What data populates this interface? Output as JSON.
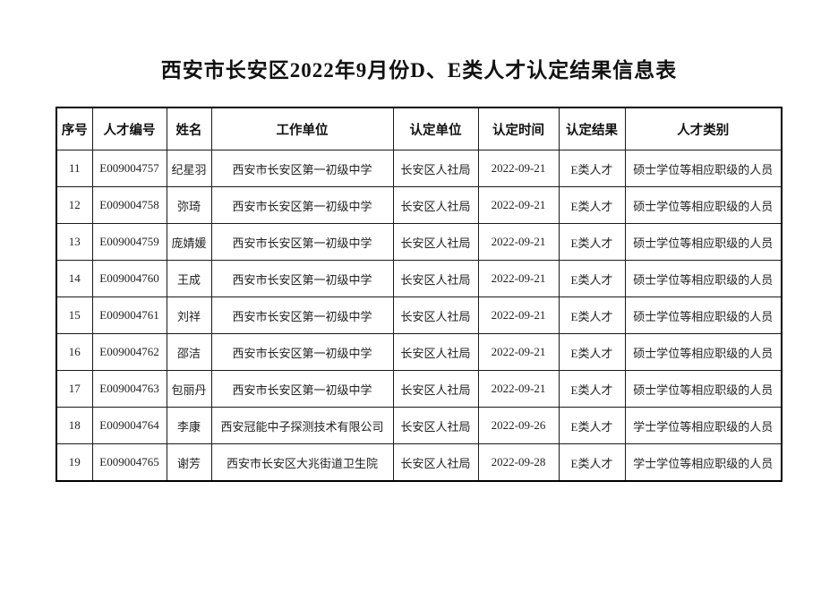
{
  "title": "西安市长安区2022年9月份D、E类人才认定结果信息表",
  "table": {
    "columns": [
      "序号",
      "人才编号",
      "姓名",
      "工作单位",
      "认定单位",
      "认定时间",
      "认定结果",
      "人才类别"
    ],
    "rows": [
      [
        "11",
        "E009004757",
        "纪星羽",
        "西安市长安区第一初级中学",
        "长安区人社局",
        "2022-09-21",
        "E类人才",
        "硕士学位等相应职级的人员"
      ],
      [
        "12",
        "E009004758",
        "弥琦",
        "西安市长安区第一初级中学",
        "长安区人社局",
        "2022-09-21",
        "E类人才",
        "硕士学位等相应职级的人员"
      ],
      [
        "13",
        "E009004759",
        "庞婧媛",
        "西安市长安区第一初级中学",
        "长安区人社局",
        "2022-09-21",
        "E类人才",
        "硕士学位等相应职级的人员"
      ],
      [
        "14",
        "E009004760",
        "王成",
        "西安市长安区第一初级中学",
        "长安区人社局",
        "2022-09-21",
        "E类人才",
        "硕士学位等相应职级的人员"
      ],
      [
        "15",
        "E009004761",
        "刘祥",
        "西安市长安区第一初级中学",
        "长安区人社局",
        "2022-09-21",
        "E类人才",
        "硕士学位等相应职级的人员"
      ],
      [
        "16",
        "E009004762",
        "邵洁",
        "西安市长安区第一初级中学",
        "长安区人社局",
        "2022-09-21",
        "E类人才",
        "硕士学位等相应职级的人员"
      ],
      [
        "17",
        "E009004763",
        "包丽丹",
        "西安市长安区第一初级中学",
        "长安区人社局",
        "2022-09-21",
        "E类人才",
        "硕士学位等相应职级的人员"
      ],
      [
        "18",
        "E009004764",
        "李康",
        "西安冠能中子探测技术有限公司",
        "长安区人社局",
        "2022-09-26",
        "E类人才",
        "学士学位等相应职级的人员"
      ],
      [
        "19",
        "E009004765",
        "谢芳",
        "西安市长安区大兆街道卫生院",
        "长安区人社局",
        "2022-09-28",
        "E类人才",
        "学士学位等相应职级的人员"
      ]
    ]
  }
}
